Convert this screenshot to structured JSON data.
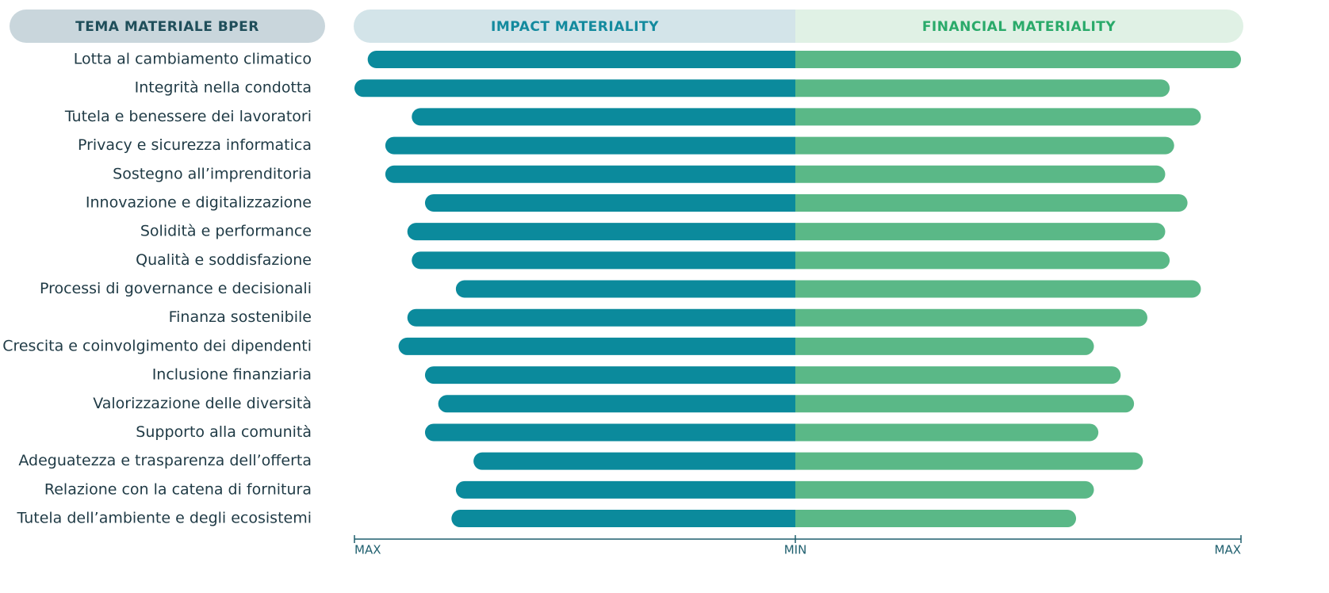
{
  "chart_data": {
    "type": "butterfly",
    "header": "TEMA MATERIALE BPER",
    "categories": [
      "Lotta al cambiamento climatico",
      "Integrità nella condotta",
      "Tutela e benessere dei lavoratori",
      "Privacy e sicurezza informatica",
      "Sostegno all’imprenditoria",
      "Innovazione e digitalizzazione",
      "Solidità e performance",
      "Qualità e soddisfazione",
      "Processi di governance e decisionali",
      "Finanza sostenibile",
      "Crescita e coinvolgimento dei dipendenti",
      "Inclusione finanziaria",
      "Valorizzazione delle diversità",
      "Supporto alla comunità",
      "Adeguatezza e trasparenza dell’offerta",
      "Relazione con la catena di fornitura",
      "Tutela dell’ambiente e degli ecosistemi"
    ],
    "series": [
      {
        "name": "IMPACT MATERIALITY",
        "color": "#0b8a9c",
        "values": [
          0.97,
          1.0,
          0.87,
          0.93,
          0.93,
          0.84,
          0.88,
          0.87,
          0.77,
          0.88,
          0.9,
          0.84,
          0.81,
          0.84,
          0.73,
          0.77,
          0.78
        ]
      },
      {
        "name": "FINANCIAL MATERIALITY",
        "color": "#5ab887",
        "values": [
          1.0,
          0.84,
          0.91,
          0.85,
          0.83,
          0.88,
          0.83,
          0.84,
          0.91,
          0.79,
          0.67,
          0.73,
          0.76,
          0.68,
          0.78,
          0.67,
          0.63
        ]
      }
    ],
    "xlim": [
      0,
      1
    ],
    "xticks": [
      {
        "value": 0,
        "label": "MIN"
      },
      {
        "value": 1,
        "label": "MAX"
      }
    ]
  }
}
